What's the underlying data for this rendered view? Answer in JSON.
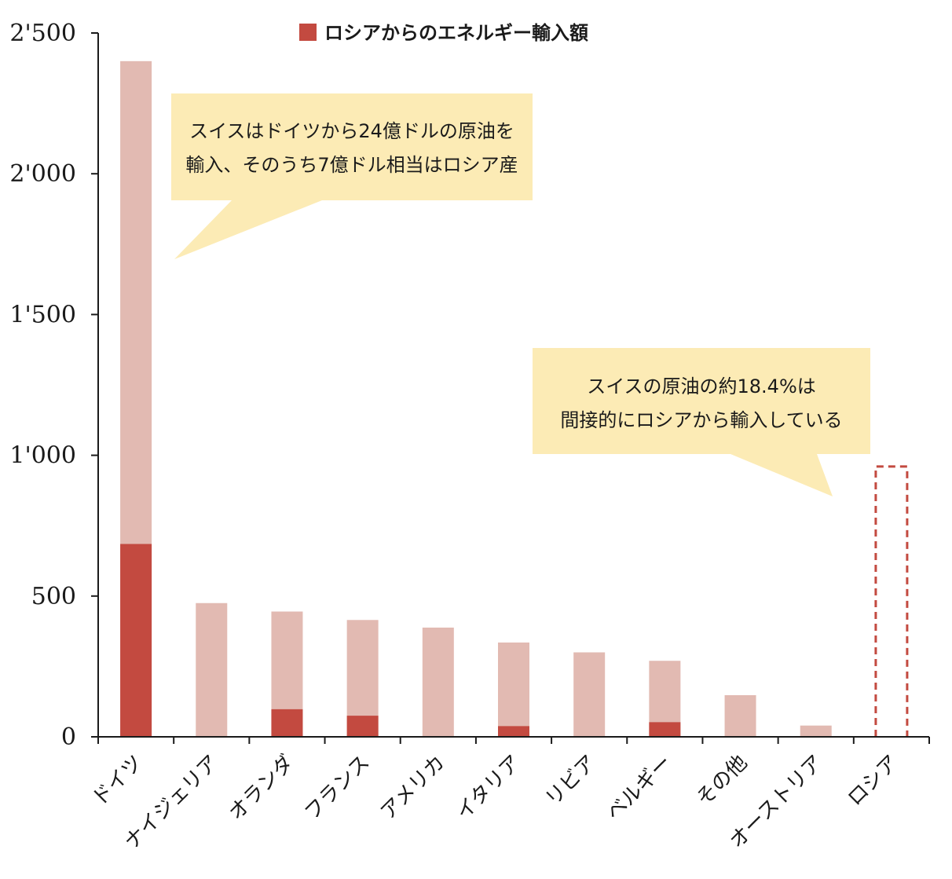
{
  "chart_data": {
    "type": "bar",
    "title": "",
    "xlabel": "",
    "ylabel": "",
    "ylim": [
      0,
      2500
    ],
    "yticks": [
      0,
      500,
      1000,
      1500,
      2000,
      2500
    ],
    "ytick_labels": [
      "0",
      "500",
      "1'000",
      "1'500",
      "2'000",
      "2'500"
    ],
    "categories": [
      "ドイツ",
      "ナイジェリア",
      "オランダ",
      "フランス",
      "アメリカ",
      "イタリア",
      "リビア",
      "ベルギー",
      "その他",
      "オーストリア",
      "ロシア"
    ],
    "series": [
      {
        "name": "",
        "role": "total",
        "color": "#e2bab2",
        "values": [
          2400,
          475,
          445,
          415,
          388,
          335,
          300,
          270,
          148,
          40,
          null
        ]
      },
      {
        "name": "ロシアからのエネルギー輸入額",
        "role": "russian_share",
        "color": "#c34a40",
        "values": [
          685,
          0,
          98,
          75,
          0,
          38,
          0,
          52,
          0,
          0,
          null
        ]
      }
    ],
    "dashed_outline": {
      "category": "ロシア",
      "value": 960,
      "color": "#c34a40"
    },
    "legend": {
      "label": "ロシアからのエネルギー輸入額",
      "color": "#c34a40",
      "position": "top-center"
    },
    "annotations": [
      {
        "lines": [
          "スイスはドイツから24億ドルの原油を",
          "輸入、そのうち7億ドル相当はロシア産"
        ],
        "target": "ドイツ"
      },
      {
        "lines": [
          "スイスの原油の約18.4%は",
          "間接的にロシアから輸入している"
        ],
        "target": "ロシア"
      }
    ],
    "grid": false
  },
  "colors": {
    "axis": "#1a1a1a",
    "callout_fill": "#fcebb5"
  }
}
